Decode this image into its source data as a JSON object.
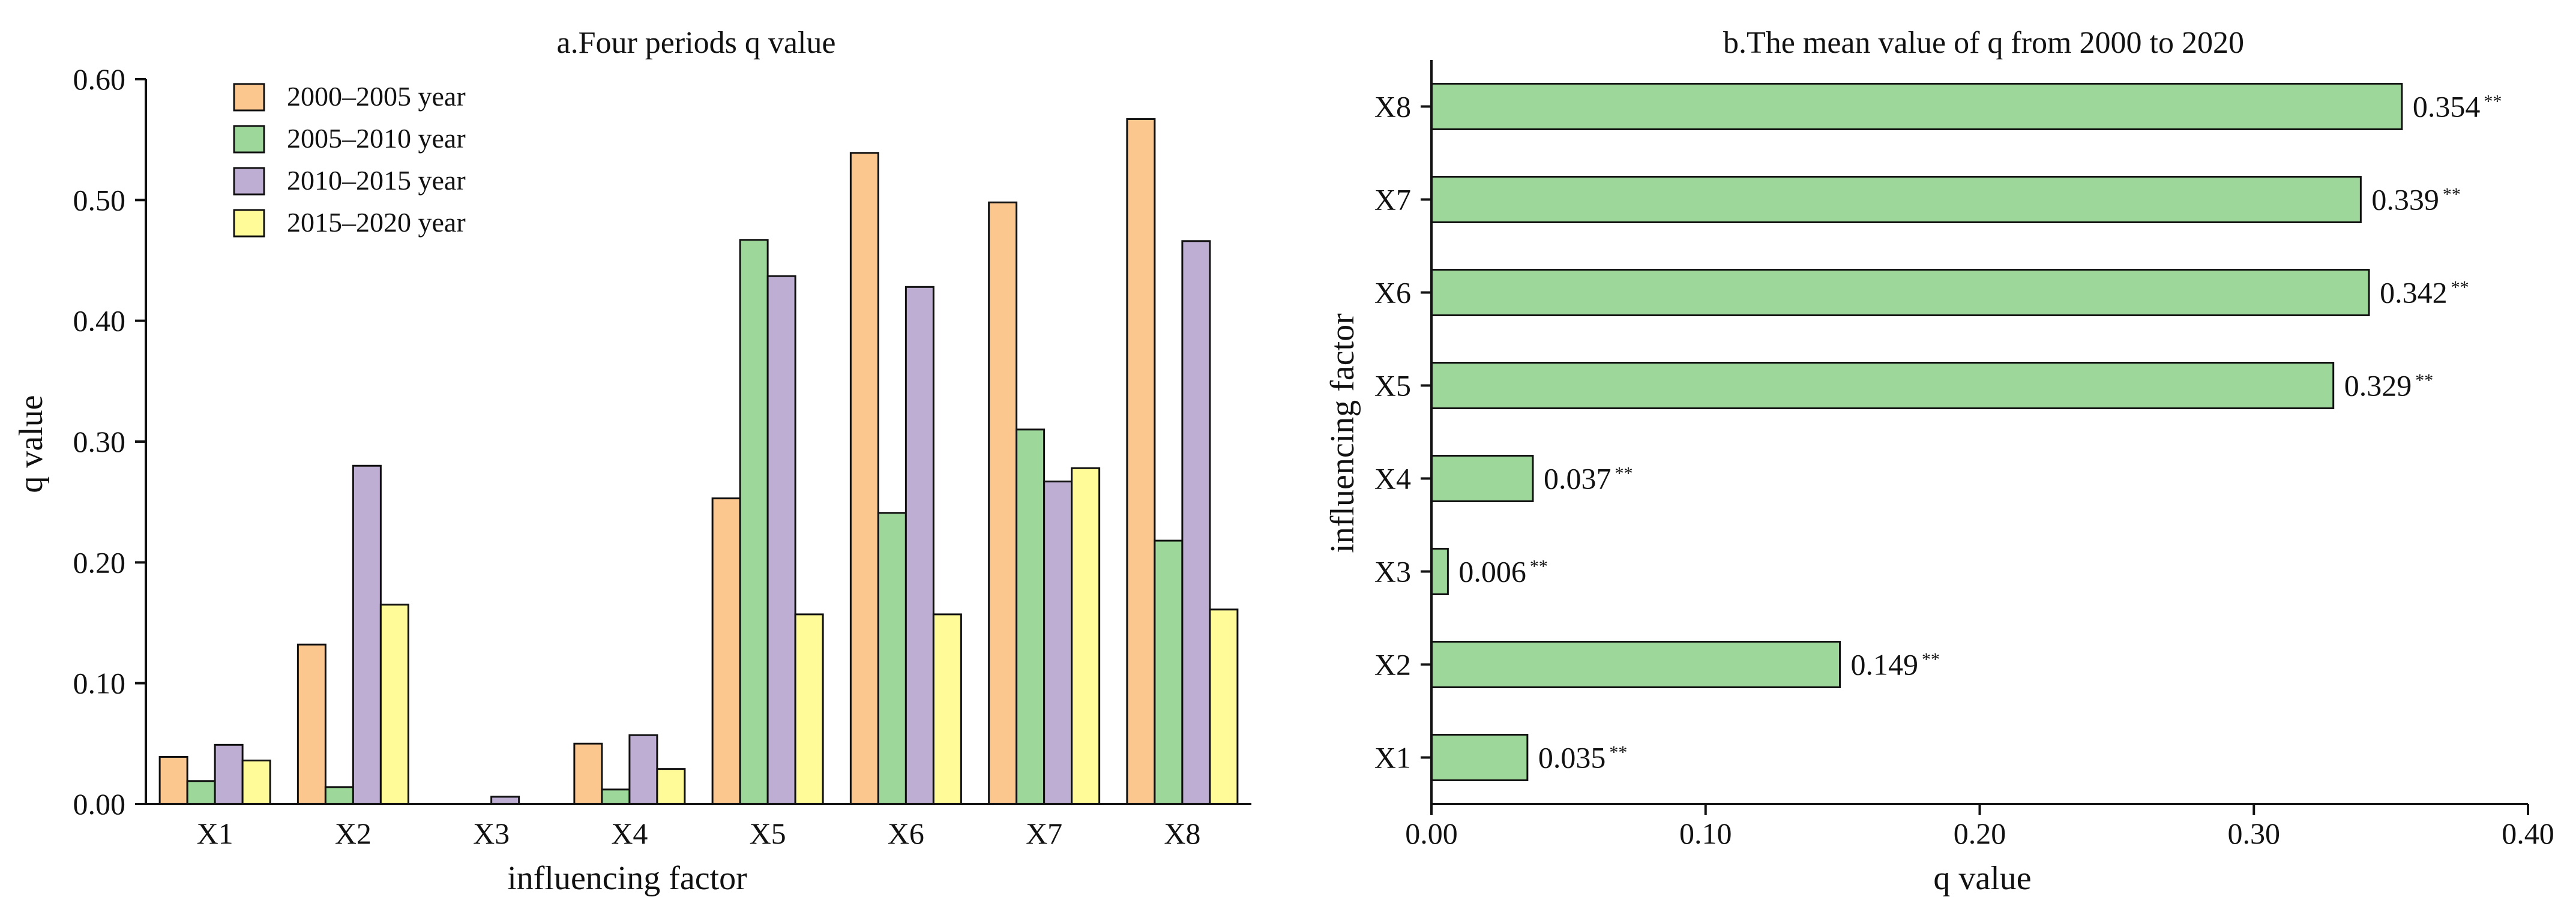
{
  "chart_data": [
    {
      "type": "bar",
      "title": "a.Four periods q value",
      "xlabel": "influencing factor",
      "ylabel": "q value",
      "categories": [
        "X1",
        "X2",
        "X3",
        "X4",
        "X5",
        "X6",
        "X7",
        "X8"
      ],
      "ylim": [
        0,
        0.6
      ],
      "yticks": [
        "0.00",
        "0.10",
        "0.20",
        "0.30",
        "0.40",
        "0.50",
        "0.60"
      ],
      "legend_position": "top-left",
      "series": [
        {
          "name": "2000–2005 year",
          "color": "#FCC68F",
          "values": [
            0.039,
            0.132,
            0.0,
            0.05,
            0.253,
            0.539,
            0.498,
            0.567
          ]
        },
        {
          "name": "2005–2010 year",
          "color": "#9DD89A",
          "values": [
            0.019,
            0.014,
            0.0,
            0.012,
            0.467,
            0.241,
            0.31,
            0.218
          ]
        },
        {
          "name": "2010–2015 year",
          "color": "#BFAED3",
          "values": [
            0.049,
            0.28,
            0.006,
            0.057,
            0.437,
            0.428,
            0.267,
            0.466
          ]
        },
        {
          "name": "2015–2020 year",
          "color": "#FFFB99",
          "values": [
            0.036,
            0.165,
            0.0,
            0.029,
            0.157,
            0.157,
            0.278,
            0.161
          ]
        }
      ]
    },
    {
      "type": "bar",
      "orientation": "horizontal",
      "title": "b.The mean value of q from 2000 to 2020",
      "xlabel": "q value",
      "ylabel": "influencing factor",
      "categories": [
        "X1",
        "X2",
        "X3",
        "X4",
        "X5",
        "X6",
        "X7",
        "X8"
      ],
      "values": [
        0.035,
        0.149,
        0.006,
        0.037,
        0.329,
        0.342,
        0.339,
        0.354
      ],
      "value_labels": [
        "0.035",
        "0.149",
        "0.006",
        "0.037",
        "0.329",
        "0.342",
        "0.339",
        "0.354"
      ],
      "significance": "**",
      "xlim": [
        0,
        0.4
      ],
      "xticks": [
        "0.00",
        "0.10",
        "0.20",
        "0.30",
        "0.40"
      ],
      "color": "#9DD89A"
    }
  ]
}
